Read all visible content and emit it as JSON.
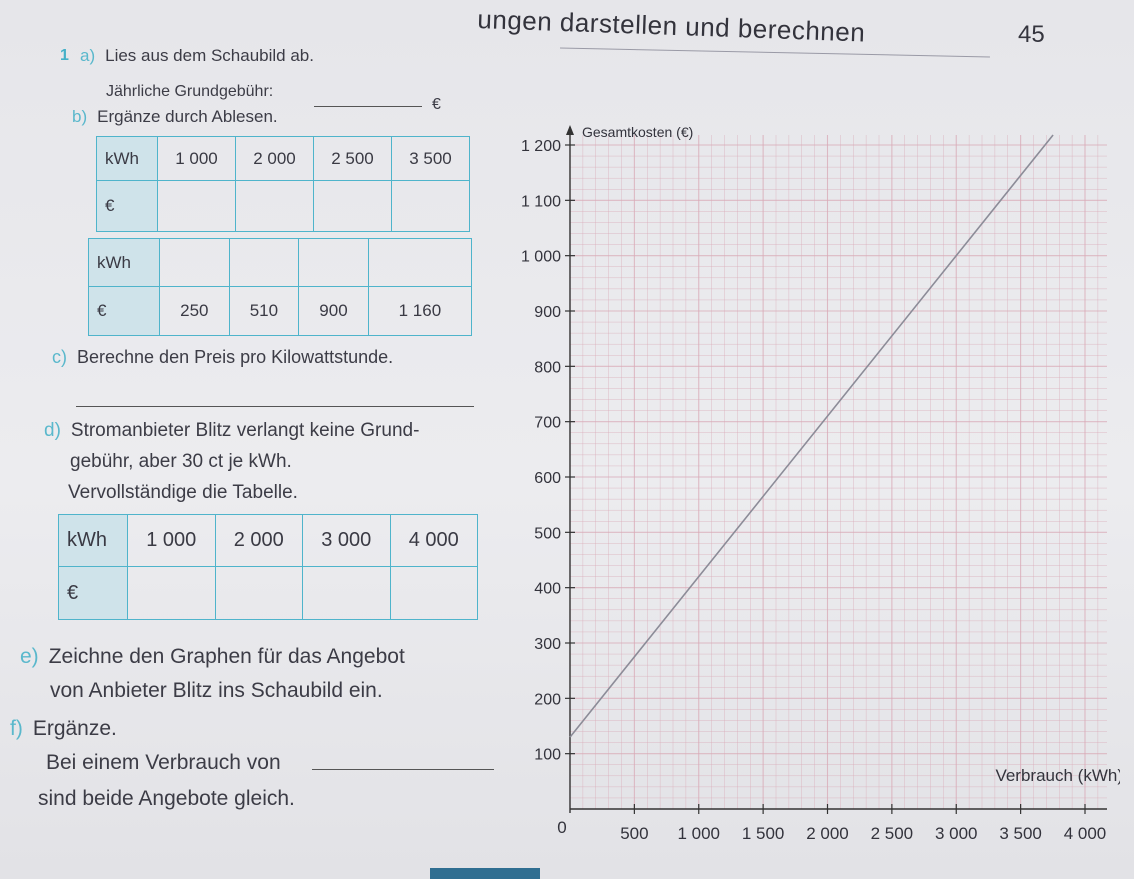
{
  "header": {
    "title": "ungen darstellen und berechnen",
    "page_number": "45"
  },
  "task": {
    "number": "1",
    "a": {
      "letter": "a)",
      "text": "Lies aus dem Schaubild ab.",
      "prompt": "Jährliche Grundgebühr:",
      "unit": "€"
    },
    "b": {
      "letter": "b)",
      "text": "Ergänze durch Ablesen.",
      "table1": {
        "row_labels": [
          "kWh",
          "€"
        ],
        "kwh": [
          "1 000",
          "2 000",
          "2 500",
          "3 500"
        ],
        "euro": [
          "",
          "",
          "",
          ""
        ]
      },
      "table2": {
        "row_labels": [
          "kWh",
          "€"
        ],
        "kwh": [
          "",
          "",
          "",
          ""
        ],
        "euro": [
          "250",
          "510",
          "900",
          "1 160"
        ]
      }
    },
    "c": {
      "letter": "c)",
      "text": "Berechne den Preis pro Kilowattstunde."
    },
    "d": {
      "letter": "d)",
      "lines": [
        "Stromanbieter Blitz verlangt keine Grund-",
        "gebühr, aber 30 ct je kWh.",
        "Vervollständige die Tabelle."
      ],
      "table": {
        "row_labels": [
          "kWh",
          "€"
        ],
        "kwh": [
          "1 000",
          "2 000",
          "3 000",
          "4 000"
        ],
        "euro": [
          "",
          "",
          "",
          ""
        ]
      }
    },
    "e": {
      "letter": "e)",
      "lines": [
        "Zeichne den Graphen für das Angebot",
        "von Anbieter Blitz ins Schaubild ein."
      ]
    },
    "f": {
      "letter": "f)",
      "lines": [
        "Ergänze.",
        "Bei einem Verbrauch von",
        "sind beide Angebote gleich."
      ]
    }
  },
  "chart_data": {
    "type": "line",
    "ylabel": "Gesamtkosten (€)",
    "xlabel": "Verbrauch (kWh)",
    "xlim": [
      0,
      4000
    ],
    "ylim": [
      0,
      1200
    ],
    "x_ticks": [
      "0",
      "500",
      "1 000",
      "1 500",
      "2 000",
      "2 500",
      "3 000",
      "3 500",
      "4 000"
    ],
    "y_ticks": [
      "100",
      "200",
      "300",
      "400",
      "500",
      "600",
      "700",
      "800",
      "900",
      "1 000",
      "1 100",
      "1 200"
    ],
    "grid": true,
    "series": [
      {
        "x": [
          0,
          4000
        ],
        "y": [
          130,
          1290
        ]
      }
    ],
    "colors": {
      "grid": "#d9a9b6",
      "line": "#8c8c98",
      "axis": "#333333"
    }
  }
}
